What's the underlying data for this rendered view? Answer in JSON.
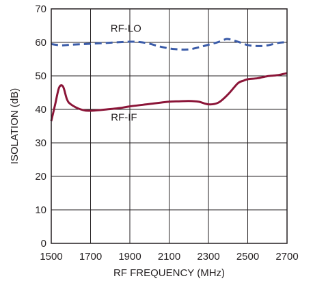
{
  "chart_data": {
    "type": "line",
    "title": "",
    "xlabel": "RF FREQUENCY (MHz)",
    "ylabel": "ISOLATION (dB)",
    "xlim": [
      1500,
      2700
    ],
    "ylim": [
      0,
      70
    ],
    "x_ticks": [
      "1500",
      "1700",
      "1900",
      "2100",
      "2300",
      "2500",
      "2700"
    ],
    "y_ticks": [
      "0",
      "10",
      "20",
      "30",
      "40",
      "50",
      "60",
      "70"
    ],
    "grid": true,
    "series": [
      {
        "name": "RF-LO",
        "style": "dashed",
        "color": "#3a5ba8",
        "x": [
          1500,
          1550,
          1600,
          1700,
          1800,
          1900,
          1950,
          2000,
          2050,
          2100,
          2150,
          2200,
          2250,
          2300,
          2350,
          2380,
          2400,
          2450,
          2500,
          2550,
          2600,
          2650,
          2700
        ],
        "y": [
          59.5,
          59.1,
          59.3,
          59.6,
          59.9,
          60.2,
          60.1,
          59.6,
          58.8,
          58.2,
          57.9,
          57.9,
          58.5,
          59.3,
          60.1,
          60.8,
          61.0,
          60.2,
          59.2,
          58.9,
          59.1,
          59.8,
          60.1
        ]
      },
      {
        "name": "RF-IF",
        "style": "solid",
        "color": "#8b1538",
        "x": [
          1500,
          1520,
          1540,
          1560,
          1580,
          1600,
          1650,
          1700,
          1800,
          1850,
          1900,
          2000,
          2100,
          2150,
          2200,
          2250,
          2300,
          2350,
          2400,
          2450,
          2480,
          2500,
          2550,
          2600,
          2650,
          2700
        ],
        "y": [
          36.5,
          41.5,
          46.5,
          46.8,
          43.0,
          41.5,
          40.0,
          39.6,
          40.1,
          40.4,
          40.9,
          41.6,
          42.3,
          42.4,
          42.5,
          42.3,
          41.5,
          42.0,
          44.5,
          47.8,
          48.6,
          49.0,
          49.3,
          49.9,
          50.2,
          50.8
        ]
      }
    ],
    "annotations": [
      {
        "text": "RF-LO",
        "x": 1880,
        "y": 63.2
      },
      {
        "text": "RF-IF",
        "x": 1870,
        "y": 36.6
      }
    ]
  }
}
